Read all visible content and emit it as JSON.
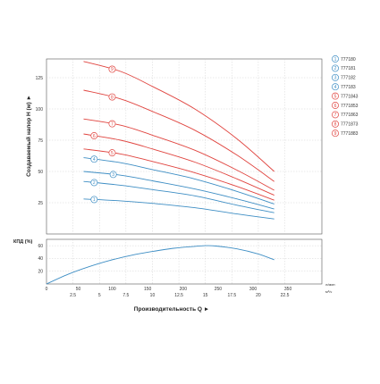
{
  "chart_data": [
    {
      "type": "line",
      "title": "",
      "ylabel": "Создаваемый напор H (м) ►",
      "xlim": [
        0,
        26
      ],
      "ylim": [
        0,
        140
      ],
      "yticks": [
        "25",
        "50",
        "75",
        "100",
        "125"
      ],
      "grid": true,
      "legend": "right",
      "series": [
        {
          "name": "777180",
          "label": "1",
          "color": "#3e8ec4",
          "x": [
            3.5,
            7,
            10,
            14,
            18,
            21.5
          ],
          "y": [
            28,
            26.5,
            24.5,
            21,
            16,
            12
          ]
        },
        {
          "name": "777181",
          "label": "2",
          "color": "#3e8ec4",
          "x": [
            3.5,
            7,
            10,
            14,
            18,
            21.5
          ],
          "y": [
            42,
            39,
            35.5,
            30.5,
            23,
            17
          ]
        },
        {
          "name": "777182",
          "label": "3",
          "color": "#3e8ec4",
          "x": [
            3.5,
            7,
            10,
            14,
            18,
            21.5
          ],
          "y": [
            50,
            47,
            42.5,
            36,
            28,
            20
          ]
        },
        {
          "name": "777183",
          "label": "4",
          "color": "#3e8ec4",
          "x": [
            3.5,
            7,
            10,
            14,
            18,
            21.5
          ],
          "y": [
            61,
            57,
            51.5,
            44,
            34,
            24
          ]
        },
        {
          "name": "7771843",
          "label": "5",
          "color": "#e0443f",
          "x": [
            3.5,
            7,
            10,
            14,
            18,
            21.5
          ],
          "y": [
            68,
            64,
            58,
            49,
            38,
            27
          ]
        },
        {
          "name": "7771853",
          "label": "6",
          "color": "#e0443f",
          "x": [
            3.5,
            7,
            10,
            14,
            18,
            21.5
          ],
          "y": [
            80,
            75,
            68,
            57.5,
            44,
            31
          ]
        },
        {
          "name": "7771863",
          "label": "7",
          "color": "#e0443f",
          "x": [
            3.5,
            7,
            10,
            14,
            18,
            21.5
          ],
          "y": [
            92,
            87,
            79,
            67,
            51,
            35
          ]
        },
        {
          "name": "7771873",
          "label": "8",
          "color": "#e0443f",
          "x": [
            3.5,
            7,
            10,
            14,
            18,
            21.5
          ],
          "y": [
            115,
            108,
            98,
            83,
            63,
            42
          ]
        },
        {
          "name": "7771883",
          "label": "9",
          "color": "#e0443f",
          "x": [
            3.5,
            7,
            10,
            14,
            18,
            21.5
          ],
          "y": [
            138,
            130,
            118,
            100,
            76,
            50
          ]
        }
      ]
    },
    {
      "type": "line",
      "title": "",
      "ylabel": "КПД (%)",
      "xlabel": "Производительность Q ►",
      "xlim": [
        0,
        26
      ],
      "ylim": [
        0,
        70
      ],
      "yticks": [
        "20",
        "40",
        "60"
      ],
      "grid": true,
      "x_ticks_top": [
        "50",
        "100",
        "150",
        "200",
        "250",
        "300",
        "350"
      ],
      "x_ticks_top_values": [
        3,
        6.2,
        9.55,
        12.9,
        16.2,
        19.5,
        22.8
      ],
      "x_unit_top": "л/мин",
      "x_ticks_bottom": [
        "2.5",
        "5",
        "7.5",
        "10",
        "12.5",
        "15",
        "17.5",
        "20",
        "22.5"
      ],
      "x_ticks_bottom_values": [
        2.5,
        5,
        7.5,
        10,
        12.5,
        15,
        17.5,
        20,
        22.5
      ],
      "x_unit_bottom": "м³/ч",
      "series": [
        {
          "name": "КПД",
          "color": "#3e8ec4",
          "x": [
            0,
            2,
            4,
            6,
            8,
            10,
            12,
            14,
            15,
            16,
            18,
            20,
            21.5
          ],
          "y": [
            0,
            15,
            27,
            37,
            45,
            51,
            56,
            59,
            60,
            59.5,
            55,
            47,
            38
          ]
        }
      ]
    }
  ]
}
